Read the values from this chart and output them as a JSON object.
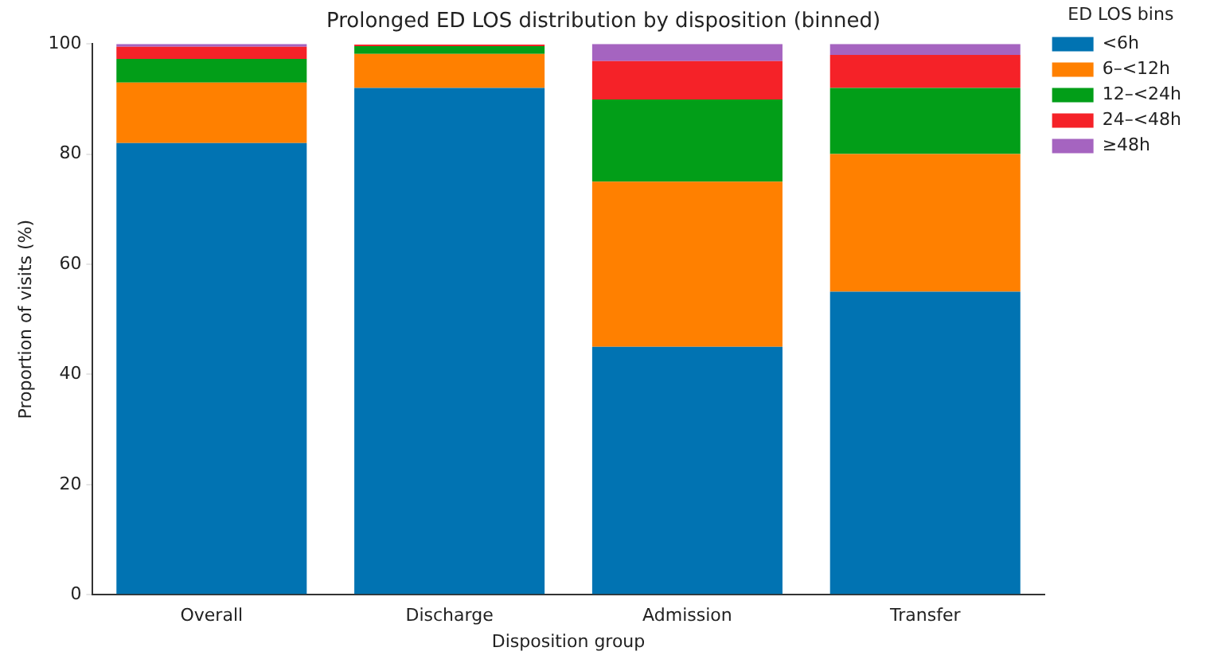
{
  "chart_data": {
    "type": "bar",
    "title": "Prolonged ED LOS distribution by disposition (binned)",
    "xlabel": "Disposition group",
    "ylabel": "Proportion of visits (%)",
    "legend_title": "ED LOS bins",
    "categories": [
      "Overall",
      "Discharge",
      "Admission",
      "Transfer"
    ],
    "series": [
      {
        "name": "<6h",
        "color": "#0173b2",
        "values": [
          82,
          92,
          45,
          55
        ]
      },
      {
        "name": "6–<12h",
        "color": "#ff8000",
        "values": [
          11,
          6.2,
          30,
          25
        ]
      },
      {
        "name": "12–<24h",
        "color": "#029e18",
        "values": [
          4.3,
          1.4,
          14.9,
          12
        ]
      },
      {
        "name": "24–<48h",
        "color": "#f52228",
        "values": [
          2.2,
          0.3,
          7,
          6
        ]
      },
      {
        "name": "≥48h",
        "color": "#a564c0",
        "values": [
          0.5,
          null,
          3.1,
          2
        ]
      }
    ],
    "stacked": true,
    "ylim": [
      0,
      100
    ],
    "yticks": [
      0,
      20,
      40,
      60,
      80,
      100
    ],
    "grid": false,
    "legend": "right"
  }
}
